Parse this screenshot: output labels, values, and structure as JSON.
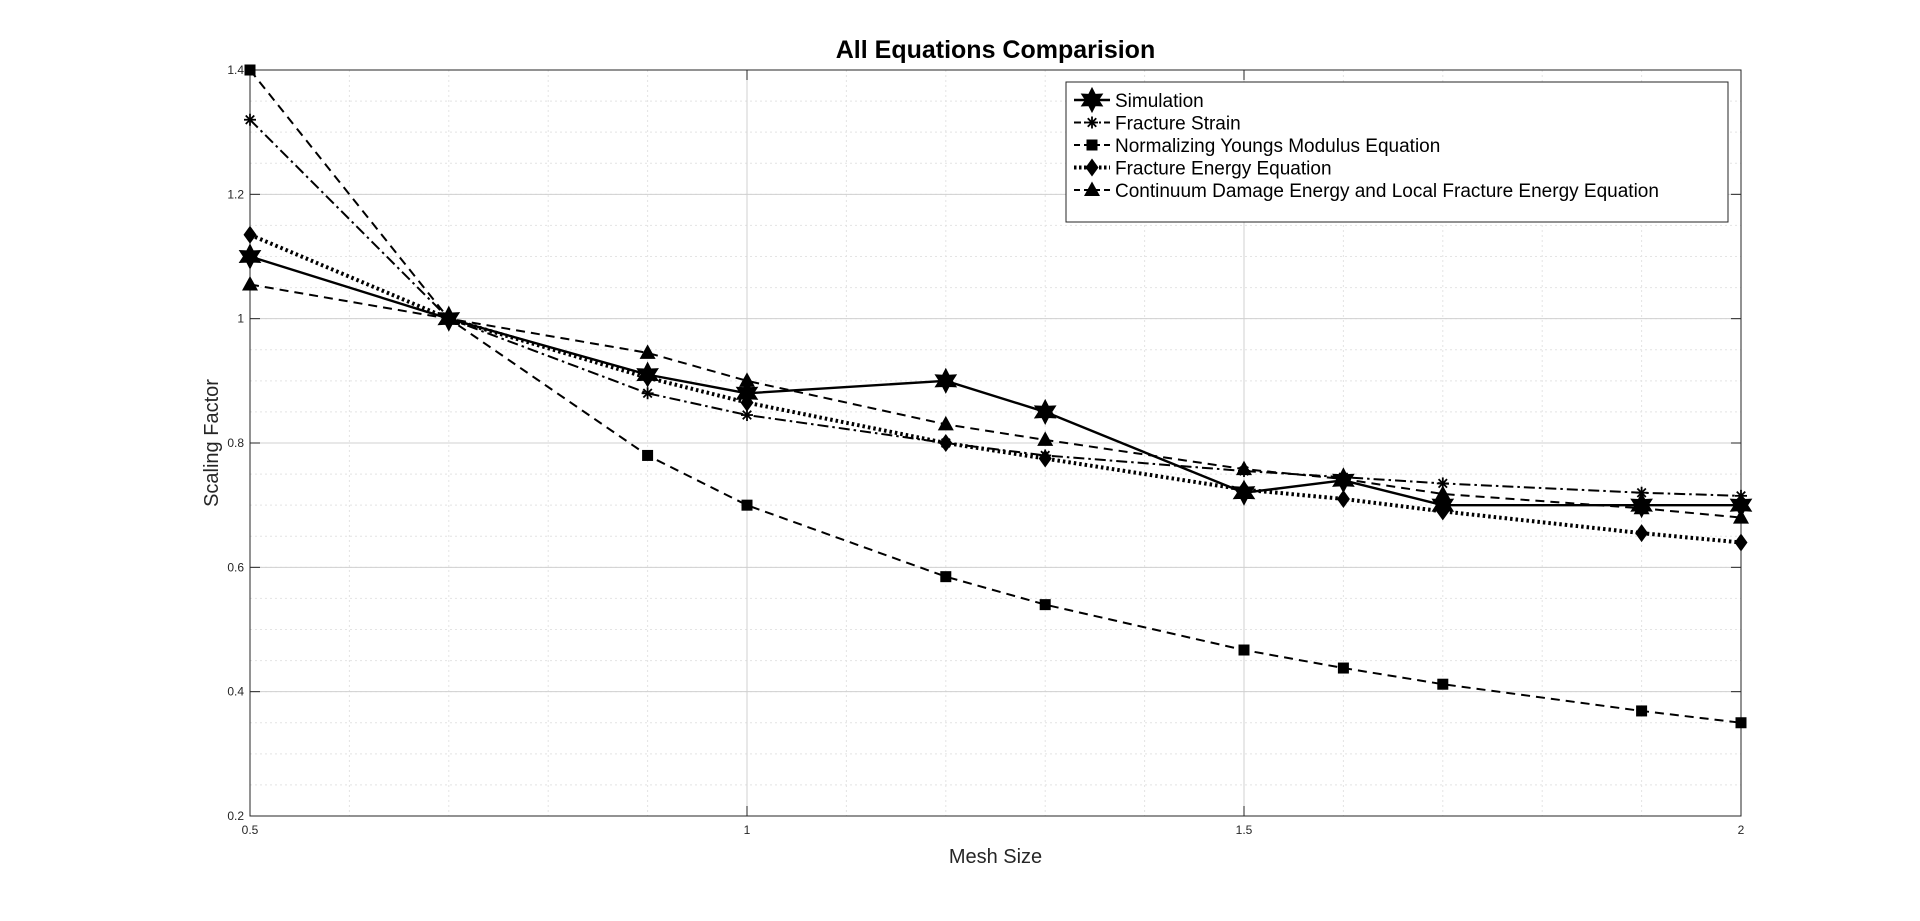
{
  "chart_data": {
    "type": "line",
    "title": "All Equations Comparision",
    "xlabel": "Mesh Size",
    "ylabel": "Scaling Factor",
    "xlim": [
      0.5,
      2
    ],
    "ylim": [
      0.2,
      1.4
    ],
    "xticks": [
      0.5,
      1,
      1.5,
      2
    ],
    "xtick_labels": [
      "0.5",
      "1",
      "1.5",
      "2"
    ],
    "yticks": [
      0.2,
      0.4,
      0.6,
      0.8,
      1,
      1.2,
      1.4
    ],
    "ytick_labels": [
      "0.2",
      "0.4",
      "0.6",
      "0.8",
      "1",
      "1.2",
      "1.4"
    ],
    "grid": true,
    "minor_grid": true,
    "legend_position": "top-right",
    "series": [
      {
        "name": "Simulation",
        "marker": "hexagram",
        "line_style": "solid",
        "x": [
          0.5,
          0.7,
          0.9,
          1.0,
          1.2,
          1.3,
          1.5,
          1.6,
          1.7,
          1.9,
          2.0
        ],
        "y": [
          1.1,
          1.0,
          0.91,
          0.88,
          0.9,
          0.85,
          0.72,
          0.74,
          0.7,
          0.7,
          0.7
        ]
      },
      {
        "name": "Fracture Strain",
        "marker": "asterisk",
        "line_style": "dash-dot",
        "x": [
          0.5,
          0.7,
          0.9,
          1.0,
          1.2,
          1.3,
          1.5,
          1.6,
          1.7,
          1.9,
          2.0
        ],
        "y": [
          1.32,
          1.0,
          0.88,
          0.845,
          0.8,
          0.78,
          0.755,
          0.745,
          0.735,
          0.72,
          0.715
        ]
      },
      {
        "name": "Normalizing Youngs Modulus Equation",
        "marker": "square",
        "line_style": "dashed",
        "x": [
          0.5,
          0.7,
          0.9,
          1.0,
          1.2,
          1.3,
          1.5,
          1.6,
          1.7,
          1.9,
          2.0
        ],
        "y": [
          1.4,
          1.0,
          0.78,
          0.7,
          0.585,
          0.54,
          0.467,
          0.438,
          0.412,
          0.369,
          0.35
        ]
      },
      {
        "name": "Fracture Energy Equation",
        "marker": "diamond",
        "line_style": "dotted",
        "x": [
          0.5,
          0.7,
          0.9,
          1.0,
          1.2,
          1.3,
          1.5,
          1.6,
          1.7,
          1.9,
          2.0
        ],
        "y": [
          1.135,
          1.0,
          0.905,
          0.865,
          0.8,
          0.775,
          0.725,
          0.71,
          0.69,
          0.655,
          0.64
        ]
      },
      {
        "name": "Continuum Damage Energy and Local Fracture Energy Equation",
        "marker": "triangle",
        "line_style": "dashed",
        "x": [
          0.5,
          0.7,
          0.9,
          1.0,
          1.2,
          1.3,
          1.5,
          1.6,
          1.7,
          1.9,
          2.0
        ],
        "y": [
          1.055,
          1.0,
          0.945,
          0.9,
          0.83,
          0.805,
          0.758,
          0.742,
          0.718,
          0.695,
          0.68
        ]
      }
    ]
  }
}
